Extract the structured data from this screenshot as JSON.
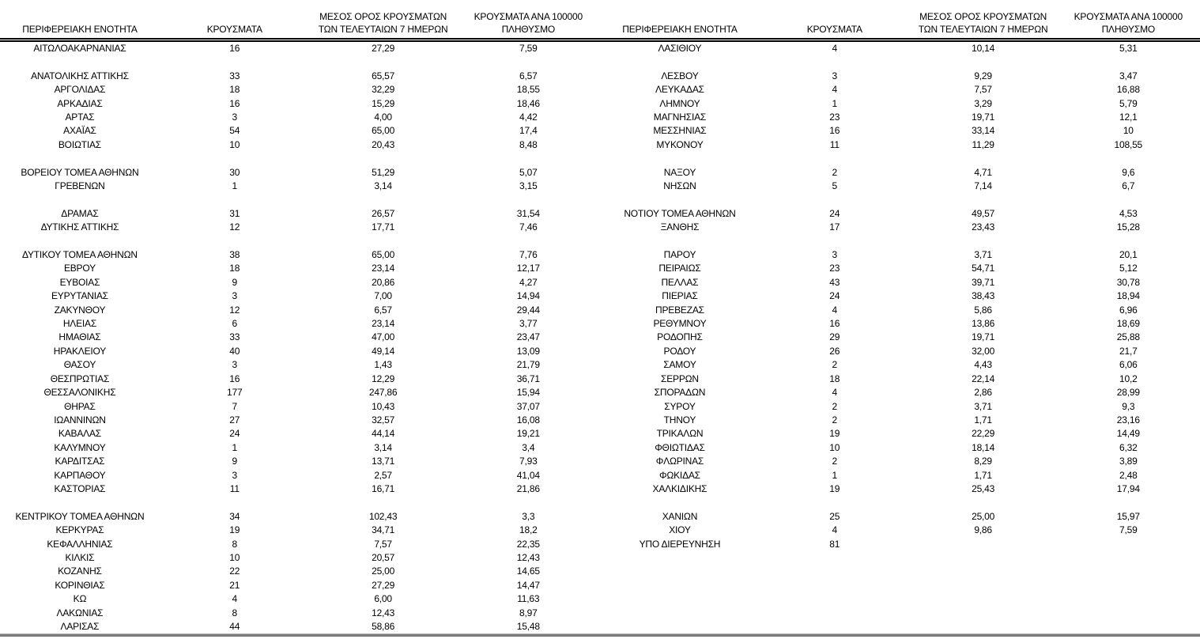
{
  "document": {
    "kind": "cases-by-regional-unit-table",
    "language": "el",
    "text_color": "#000000",
    "background_color": "#ffffff",
    "header_rule_color": "#000000",
    "bottom_rule_color": "#7d7d7d"
  },
  "columns": [
    {
      "line1": "",
      "line2": "ΠΕΡΙΦΕΡΕΙΑΚΗ ΕΝΟΤΗΤΑ"
    },
    {
      "line1": "",
      "line2": "ΚΡΟΥΣΜΑΤΑ"
    },
    {
      "line1": "ΜΕΣΟΣ ΟΡΟΣ ΚΡΟΥΣΜΑΤΩΝ",
      "line2": "ΤΩΝ ΤΕΛΕΥΤΑΙΩΝ 7 ΗΜΕΡΩΝ"
    },
    {
      "line1": "ΚΡΟΥΣΜΑΤΑ ΑΝΑ 100000",
      "line2": "ΠΛΗΘΥΣΜΟ"
    }
  ],
  "tables": [
    {
      "name": "left",
      "rows": [
        [
          "ΑΙΤΩΛΟΑΚΑΡΝΑΝΙΑΣ",
          "16",
          "27,29",
          "7,59"
        ],
        [
          "",
          "",
          "",
          ""
        ],
        [
          "ΑΝΑΤΟΛΙΚΗΣ ΑΤΤΙΚΗΣ",
          "33",
          "65,57",
          "6,57"
        ],
        [
          "ΑΡΓΟΛΙΔΑΣ",
          "18",
          "32,29",
          "18,55"
        ],
        [
          "ΑΡΚΑΔΙΑΣ",
          "16",
          "15,29",
          "18,46"
        ],
        [
          "ΑΡΤΑΣ",
          "3",
          "4,00",
          "4,42"
        ],
        [
          "ΑΧΑΪΑΣ",
          "54",
          "65,00",
          "17,4"
        ],
        [
          "ΒΟΙΩΤΙΑΣ",
          "10",
          "20,43",
          "8,48"
        ],
        [
          "",
          "",
          "",
          ""
        ],
        [
          "ΒΟΡΕΙΟΥ ΤΟΜΕΑ ΑΘΗΝΩΝ",
          "30",
          "51,29",
          "5,07"
        ],
        [
          "ΓΡΕΒΕΝΩΝ",
          "1",
          "3,14",
          "3,15"
        ],
        [
          "",
          "",
          "",
          ""
        ],
        [
          "ΔΡΑΜΑΣ",
          "31",
          "26,57",
          "31,54"
        ],
        [
          "ΔΥΤΙΚΗΣ ΑΤΤΙΚΗΣ",
          "12",
          "17,71",
          "7,46"
        ],
        [
          "",
          "",
          "",
          ""
        ],
        [
          "ΔΥΤΙΚΟΥ ΤΟΜΕΑ ΑΘΗΝΩΝ",
          "38",
          "65,00",
          "7,76"
        ],
        [
          "ΕΒΡΟΥ",
          "18",
          "23,14",
          "12,17"
        ],
        [
          "ΕΥΒΟΙΑΣ",
          "9",
          "20,86",
          "4,27"
        ],
        [
          "ΕΥΡΥΤΑΝΙΑΣ",
          "3",
          "7,00",
          "14,94"
        ],
        [
          "ΖΑΚΥΝΘΟΥ",
          "12",
          "6,57",
          "29,44"
        ],
        [
          "ΗΛΕΙΑΣ",
          "6",
          "23,14",
          "3,77"
        ],
        [
          "ΗΜΑΘΙΑΣ",
          "33",
          "47,00",
          "23,47"
        ],
        [
          "ΗΡΑΚΛΕΙΟΥ",
          "40",
          "49,14",
          "13,09"
        ],
        [
          "ΘΑΣΟΥ",
          "3",
          "1,43",
          "21,79"
        ],
        [
          "ΘΕΣΠΡΩΤΙΑΣ",
          "16",
          "12,29",
          "36,71"
        ],
        [
          "ΘΕΣΣΑΛΟΝΙΚΗΣ",
          "177",
          "247,86",
          "15,94"
        ],
        [
          "ΘΗΡΑΣ",
          "7",
          "10,43",
          "37,07"
        ],
        [
          "ΙΩΑΝΝΙΝΩΝ",
          "27",
          "32,57",
          "16,08"
        ],
        [
          "ΚΑΒΑΛΑΣ",
          "24",
          "44,14",
          "19,21"
        ],
        [
          "ΚΑΛΥΜΝΟΥ",
          "1",
          "3,14",
          "3,4"
        ],
        [
          "ΚΑΡΔΙΤΣΑΣ",
          "9",
          "13,71",
          "7,93"
        ],
        [
          "ΚΑΡΠΑΘΟΥ",
          "3",
          "2,57",
          "41,04"
        ],
        [
          "ΚΑΣΤΟΡΙΑΣ",
          "11",
          "16,71",
          "21,86"
        ],
        [
          "",
          "",
          "",
          ""
        ],
        [
          "ΚΕΝΤΡΙΚΟΥ ΤΟΜΕΑ ΑΘΗΝΩΝ",
          "34",
          "102,43",
          "3,3"
        ],
        [
          "ΚΕΡΚΥΡΑΣ",
          "19",
          "34,71",
          "18,2"
        ],
        [
          "ΚΕΦΑΛΛΗΝΙΑΣ",
          "8",
          "7,57",
          "22,35"
        ],
        [
          "ΚΙΛΚΙΣ",
          "10",
          "20,57",
          "12,43"
        ],
        [
          "ΚΟΖΑΝΗΣ",
          "22",
          "25,00",
          "14,65"
        ],
        [
          "ΚΟΡΙΝΘΙΑΣ",
          "21",
          "27,29",
          "14,47"
        ],
        [
          "ΚΩ",
          "4",
          "6,00",
          "11,63"
        ],
        [
          "ΛΑΚΩΝΙΑΣ",
          "8",
          "12,43",
          "8,97"
        ],
        [
          "ΛΑΡΙΣΑΣ",
          "44",
          "58,86",
          "15,48"
        ]
      ]
    },
    {
      "name": "right",
      "rows": [
        [
          "ΛΑΣΙΘΙΟΥ",
          "4",
          "10,14",
          "5,31"
        ],
        [
          "",
          "",
          "",
          ""
        ],
        [
          "ΛΕΣΒΟΥ",
          "3",
          "9,29",
          "3,47"
        ],
        [
          "ΛΕΥΚΑΔΑΣ",
          "4",
          "7,57",
          "16,88"
        ],
        [
          "ΛΗΜΝΟΥ",
          "1",
          "3,29",
          "5,79"
        ],
        [
          "ΜΑΓΝΗΣΙΑΣ",
          "23",
          "19,71",
          "12,1"
        ],
        [
          "ΜΕΣΣΗΝΙΑΣ",
          "16",
          "33,14",
          "10"
        ],
        [
          "ΜΥΚΟΝΟΥ",
          "11",
          "11,29",
          "108,55"
        ],
        [
          "",
          "",
          "",
          ""
        ],
        [
          "ΝΑΞΟΥ",
          "2",
          "4,71",
          "9,6"
        ],
        [
          "ΝΗΣΩΝ",
          "5",
          "7,14",
          "6,7"
        ],
        [
          "",
          "",
          "",
          ""
        ],
        [
          "ΝΟΤΙΟΥ ΤΟΜΕΑ ΑΘΗΝΩΝ",
          "24",
          "49,57",
          "4,53"
        ],
        [
          "ΞΑΝΘΗΣ",
          "17",
          "23,43",
          "15,28"
        ],
        [
          "",
          "",
          "",
          ""
        ],
        [
          "ΠΑΡΟΥ",
          "3",
          "3,71",
          "20,1"
        ],
        [
          "ΠΕΙΡΑΙΩΣ",
          "23",
          "54,71",
          "5,12"
        ],
        [
          "ΠΕΛΛΑΣ",
          "43",
          "39,71",
          "30,78"
        ],
        [
          "ΠΙΕΡΙΑΣ",
          "24",
          "38,43",
          "18,94"
        ],
        [
          "ΠΡΕΒΕΖΑΣ",
          "4",
          "5,86",
          "6,96"
        ],
        [
          "ΡΕΘΥΜΝΟΥ",
          "16",
          "13,86",
          "18,69"
        ],
        [
          "ΡΟΔΟΠΗΣ",
          "29",
          "19,71",
          "25,88"
        ],
        [
          "ΡΟΔΟΥ",
          "26",
          "32,00",
          "21,7"
        ],
        [
          "ΣΑΜΟΥ",
          "2",
          "4,43",
          "6,06"
        ],
        [
          "ΣΕΡΡΩΝ",
          "18",
          "22,14",
          "10,2"
        ],
        [
          "ΣΠΟΡΑΔΩΝ",
          "4",
          "2,86",
          "28,99"
        ],
        [
          "ΣΥΡΟΥ",
          "2",
          "3,71",
          "9,3"
        ],
        [
          "ΤΗΝΟΥ",
          "2",
          "1,71",
          "23,16"
        ],
        [
          "ΤΡΙΚΑΛΩΝ",
          "19",
          "22,29",
          "14,49"
        ],
        [
          "ΦΘΙΩΤΙΔΑΣ",
          "10",
          "18,14",
          "6,32"
        ],
        [
          "ΦΛΩΡΙΝΑΣ",
          "2",
          "8,29",
          "3,89"
        ],
        [
          "ΦΩΚΙΔΑΣ",
          "1",
          "1,71",
          "2,48"
        ],
        [
          "ΧΑΛΚΙΔΙΚΗΣ",
          "19",
          "25,43",
          "17,94"
        ],
        [
          "",
          "",
          "",
          ""
        ],
        [
          "ΧΑΝΙΩΝ",
          "25",
          "25,00",
          "15,97"
        ],
        [
          "ΧΙΟΥ",
          "4",
          "9,86",
          "7,59"
        ],
        [
          "ΥΠΟ ΔΙΕΡΕΥΝΗΣΗ",
          "81",
          "",
          ""
        ],
        [
          "",
          "",
          "",
          ""
        ],
        [
          "",
          "",
          "",
          ""
        ],
        [
          "",
          "",
          "",
          ""
        ],
        [
          "",
          "",
          "",
          ""
        ],
        [
          "",
          "",
          "",
          ""
        ],
        [
          "",
          "",
          "",
          ""
        ]
      ]
    }
  ]
}
